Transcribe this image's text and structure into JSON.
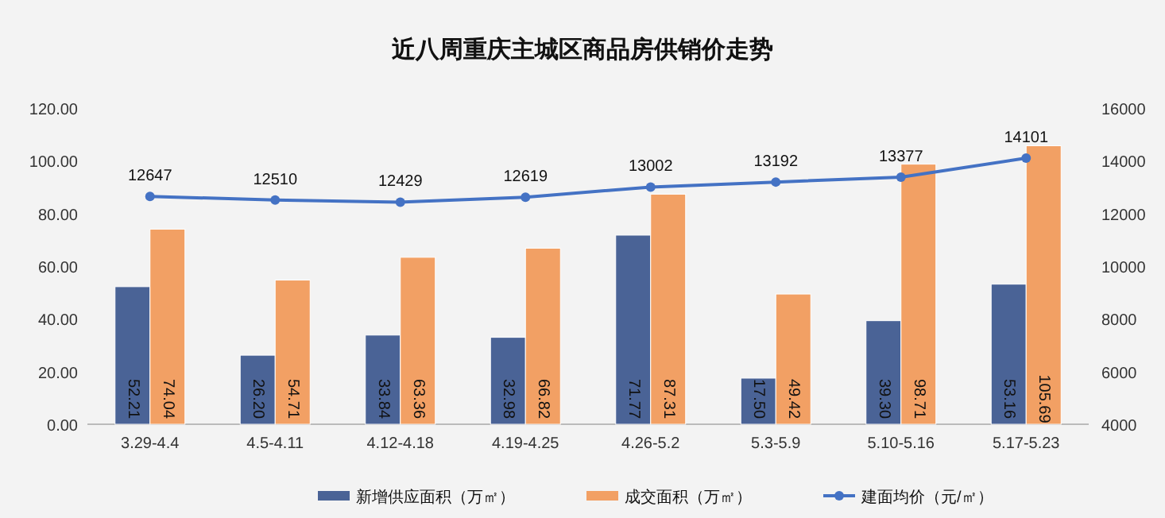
{
  "chart_data": {
    "type": "bar",
    "title": "近八周重庆主城区商品房供销价走势",
    "categories": [
      "3.29-4.4",
      "4.5-4.11",
      "4.12-4.18",
      "4.19-4.25",
      "4.26-5.2",
      "5.3-5.9",
      "5.10-5.16",
      "5.17-5.23"
    ],
    "series": [
      {
        "name": "新增供应面积（万㎡）",
        "color": "#4a6396",
        "values": [
          52.21,
          26.2,
          33.84,
          32.98,
          71.77,
          17.5,
          39.3,
          53.16
        ],
        "value_labels": [
          "52.21",
          "26.20",
          "33.84",
          "32.98",
          "71.77",
          "17.50",
          "39.30",
          "53.16"
        ]
      },
      {
        "name": "成交面积（万㎡）",
        "color": "#f2a064",
        "values": [
          74.04,
          54.71,
          63.36,
          66.82,
          87.31,
          49.42,
          98.71,
          105.69
        ],
        "value_labels": [
          "74.04",
          "54.71",
          "63.36",
          "66.82",
          "87.31",
          "49.42",
          "98.71",
          "105.69"
        ]
      },
      {
        "name": "建面均价（元/㎡）",
        "type": "line",
        "axis": "y2",
        "color": "#4472c4",
        "marker": "circle",
        "values": [
          12647,
          12510,
          12429,
          12619,
          13002,
          13192,
          13377,
          14101
        ],
        "value_labels": [
          "12647",
          "12510",
          "12429",
          "12619",
          "13002",
          "13192",
          "13377",
          "14101"
        ]
      }
    ],
    "ylim": [
      0,
      120
    ],
    "yticks": [
      {
        "value": 0,
        "label": "0.00"
      },
      {
        "value": 20,
        "label": "20.00"
      },
      {
        "value": 40,
        "label": "40.00"
      },
      {
        "value": 60,
        "label": "60.00"
      },
      {
        "value": 80,
        "label": "80.00"
      },
      {
        "value": 100,
        "label": "100.00"
      },
      {
        "value": 120,
        "label": "120.00"
      }
    ],
    "y2lim": [
      4000,
      16000
    ],
    "y2ticks": [
      4000,
      6000,
      8000,
      10000,
      12000,
      14000,
      16000
    ],
    "grid": false,
    "legend": "bottom"
  }
}
